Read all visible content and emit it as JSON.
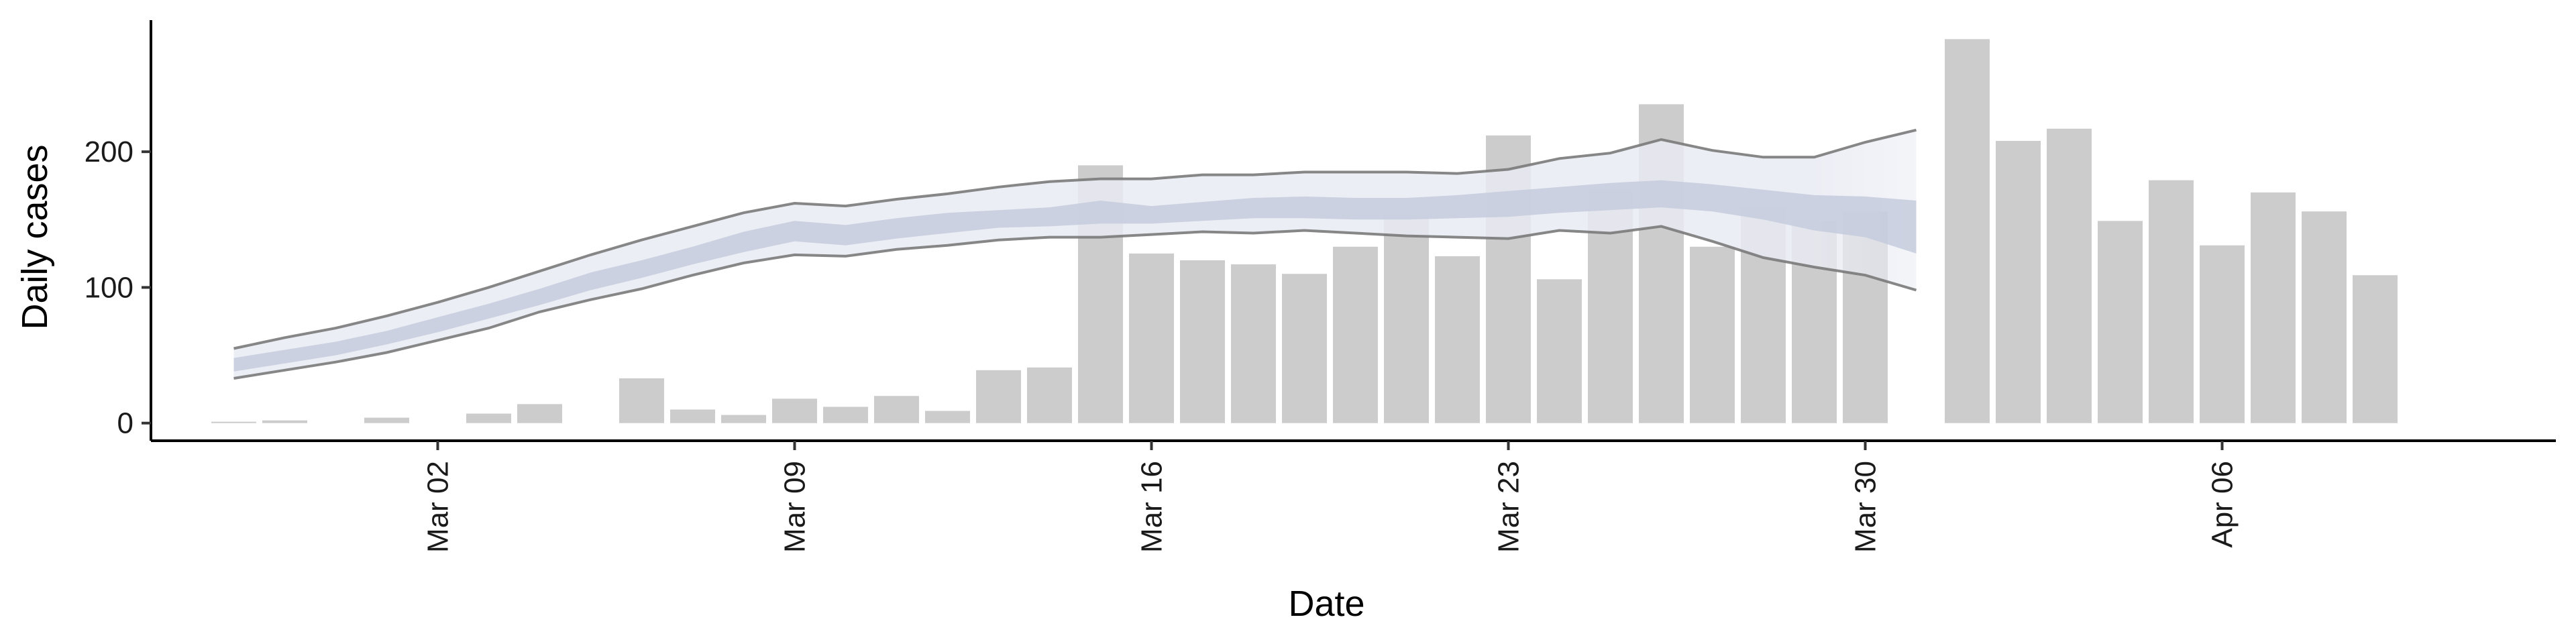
{
  "chart_data": {
    "type": "bar",
    "title": "",
    "xlabel": "Date",
    "ylabel": "Daily cases",
    "ylim": [
      -13,
      297
    ],
    "y_ticks": [
      0,
      100,
      200
    ],
    "x_ticks": [
      {
        "date": "2020-03-02",
        "label": "Mar 02"
      },
      {
        "date": "2020-03-09",
        "label": "Mar 09"
      },
      {
        "date": "2020-03-16",
        "label": "Mar 16"
      },
      {
        "date": "2020-03-23",
        "label": "Mar 23"
      },
      {
        "date": "2020-03-30",
        "label": "Mar 30"
      },
      {
        "date": "2020-04-06",
        "label": "Apr 06"
      }
    ],
    "xlim": [
      "2020-02-24",
      "2020-04-12"
    ],
    "grid": false,
    "legend": "none",
    "bar_color": "#cccccc",
    "bars": [
      {
        "date": "2020-02-27",
        "value": 1
      },
      {
        "date": "2020-02-28",
        "value": 2
      },
      {
        "date": "2020-03-01",
        "value": 4
      },
      {
        "date": "2020-03-03",
        "value": 7
      },
      {
        "date": "2020-03-04",
        "value": 14
      },
      {
        "date": "2020-03-06",
        "value": 33
      },
      {
        "date": "2020-03-07",
        "value": 10
      },
      {
        "date": "2020-03-08",
        "value": 6
      },
      {
        "date": "2020-03-09",
        "value": 18
      },
      {
        "date": "2020-03-10",
        "value": 12
      },
      {
        "date": "2020-03-11",
        "value": 20
      },
      {
        "date": "2020-03-12",
        "value": 9
      },
      {
        "date": "2020-03-13",
        "value": 39
      },
      {
        "date": "2020-03-14",
        "value": 41
      },
      {
        "date": "2020-03-15",
        "value": 190
      },
      {
        "date": "2020-03-16",
        "value": 125
      },
      {
        "date": "2020-03-17",
        "value": 120
      },
      {
        "date": "2020-03-18",
        "value": 117
      },
      {
        "date": "2020-03-19",
        "value": 110
      },
      {
        "date": "2020-03-20",
        "value": 130
      },
      {
        "date": "2020-03-21",
        "value": 153
      },
      {
        "date": "2020-03-22",
        "value": 123
      },
      {
        "date": "2020-03-23",
        "value": 212
      },
      {
        "date": "2020-03-24",
        "value": 106
      },
      {
        "date": "2020-03-25",
        "value": 172
      },
      {
        "date": "2020-03-26",
        "value": 235
      },
      {
        "date": "2020-03-27",
        "value": 130
      },
      {
        "date": "2020-03-28",
        "value": 159
      },
      {
        "date": "2020-03-29",
        "value": 149
      },
      {
        "date": "2020-03-30",
        "value": 156
      },
      {
        "date": "2020-04-01",
        "value": 283
      },
      {
        "date": "2020-04-02",
        "value": 208
      },
      {
        "date": "2020-04-03",
        "value": 217
      },
      {
        "date": "2020-04-04",
        "value": 149
      },
      {
        "date": "2020-04-05",
        "value": 179
      },
      {
        "date": "2020-04-06",
        "value": 131
      },
      {
        "date": "2020-04-07",
        "value": 170
      },
      {
        "date": "2020-04-08",
        "value": 156
      },
      {
        "date": "2020-04-09",
        "value": 109
      }
    ],
    "estimate": {
      "colors": {
        "outer_band": "#e9ebf3",
        "inner_band": "#c5cbdd",
        "bound_line": "#7a7a7a"
      },
      "series": [
        {
          "date": "2020-02-27",
          "lower": 33,
          "inner_lower": 38,
          "inner_upper": 48,
          "upper": 55
        },
        {
          "date": "2020-02-28",
          "lower": 39,
          "inner_lower": 44,
          "inner_upper": 54,
          "upper": 63
        },
        {
          "date": "2020-02-29",
          "lower": 45,
          "inner_lower": 50,
          "inner_upper": 60,
          "upper": 70
        },
        {
          "date": "2020-03-01",
          "lower": 52,
          "inner_lower": 58,
          "inner_upper": 68,
          "upper": 79
        },
        {
          "date": "2020-03-02",
          "lower": 61,
          "inner_lower": 67,
          "inner_upper": 78,
          "upper": 89
        },
        {
          "date": "2020-03-03",
          "lower": 70,
          "inner_lower": 77,
          "inner_upper": 88,
          "upper": 100
        },
        {
          "date": "2020-03-04",
          "lower": 82,
          "inner_lower": 87,
          "inner_upper": 99,
          "upper": 112
        },
        {
          "date": "2020-03-05",
          "lower": 91,
          "inner_lower": 98,
          "inner_upper": 111,
          "upper": 124
        },
        {
          "date": "2020-03-06",
          "lower": 99,
          "inner_lower": 107,
          "inner_upper": 120,
          "upper": 135
        },
        {
          "date": "2020-03-07",
          "lower": 109,
          "inner_lower": 117,
          "inner_upper": 130,
          "upper": 145
        },
        {
          "date": "2020-03-08",
          "lower": 118,
          "inner_lower": 126,
          "inner_upper": 141,
          "upper": 155
        },
        {
          "date": "2020-03-09",
          "lower": 124,
          "inner_lower": 134,
          "inner_upper": 149,
          "upper": 162
        },
        {
          "date": "2020-03-10",
          "lower": 123,
          "inner_lower": 131,
          "inner_upper": 146,
          "upper": 160
        },
        {
          "date": "2020-03-11",
          "lower": 128,
          "inner_lower": 136,
          "inner_upper": 151,
          "upper": 165
        },
        {
          "date": "2020-03-12",
          "lower": 131,
          "inner_lower": 140,
          "inner_upper": 155,
          "upper": 169
        },
        {
          "date": "2020-03-13",
          "lower": 135,
          "inner_lower": 144,
          "inner_upper": 157,
          "upper": 174
        },
        {
          "date": "2020-03-14",
          "lower": 137,
          "inner_lower": 145,
          "inner_upper": 159,
          "upper": 178
        },
        {
          "date": "2020-03-15",
          "lower": 137,
          "inner_lower": 147,
          "inner_upper": 164,
          "upper": 180
        },
        {
          "date": "2020-03-16",
          "lower": 139,
          "inner_lower": 147,
          "inner_upper": 160,
          "upper": 180
        },
        {
          "date": "2020-03-17",
          "lower": 141,
          "inner_lower": 149,
          "inner_upper": 163,
          "upper": 183
        },
        {
          "date": "2020-03-18",
          "lower": 140,
          "inner_lower": 151,
          "inner_upper": 166,
          "upper": 183
        },
        {
          "date": "2020-03-19",
          "lower": 142,
          "inner_lower": 151,
          "inner_upper": 167,
          "upper": 185
        },
        {
          "date": "2020-03-20",
          "lower": 140,
          "inner_lower": 150,
          "inner_upper": 166,
          "upper": 185
        },
        {
          "date": "2020-03-21",
          "lower": 138,
          "inner_lower": 150,
          "inner_upper": 166,
          "upper": 185
        },
        {
          "date": "2020-03-22",
          "lower": 137,
          "inner_lower": 151,
          "inner_upper": 168,
          "upper": 184
        },
        {
          "date": "2020-03-23",
          "lower": 136,
          "inner_lower": 152,
          "inner_upper": 171,
          "upper": 187
        },
        {
          "date": "2020-03-24",
          "lower": 142,
          "inner_lower": 155,
          "inner_upper": 174,
          "upper": 195
        },
        {
          "date": "2020-03-25",
          "lower": 140,
          "inner_lower": 157,
          "inner_upper": 177,
          "upper": 199
        },
        {
          "date": "2020-03-26",
          "lower": 145,
          "inner_lower": 159,
          "inner_upper": 179,
          "upper": 209
        },
        {
          "date": "2020-03-27",
          "lower": 134,
          "inner_lower": 156,
          "inner_upper": 176,
          "upper": 201
        },
        {
          "date": "2020-03-28",
          "lower": 122,
          "inner_lower": 150,
          "inner_upper": 172,
          "upper": 196
        },
        {
          "date": "2020-03-29",
          "lower": 115,
          "inner_lower": 142,
          "inner_upper": 168,
          "upper": 196
        },
        {
          "date": "2020-03-30",
          "lower": 109,
          "inner_lower": 137,
          "inner_upper": 167,
          "upper": 207
        },
        {
          "date": "2020-03-31",
          "lower": 98,
          "inner_lower": 125,
          "inner_upper": 164,
          "upper": 216
        }
      ]
    }
  }
}
